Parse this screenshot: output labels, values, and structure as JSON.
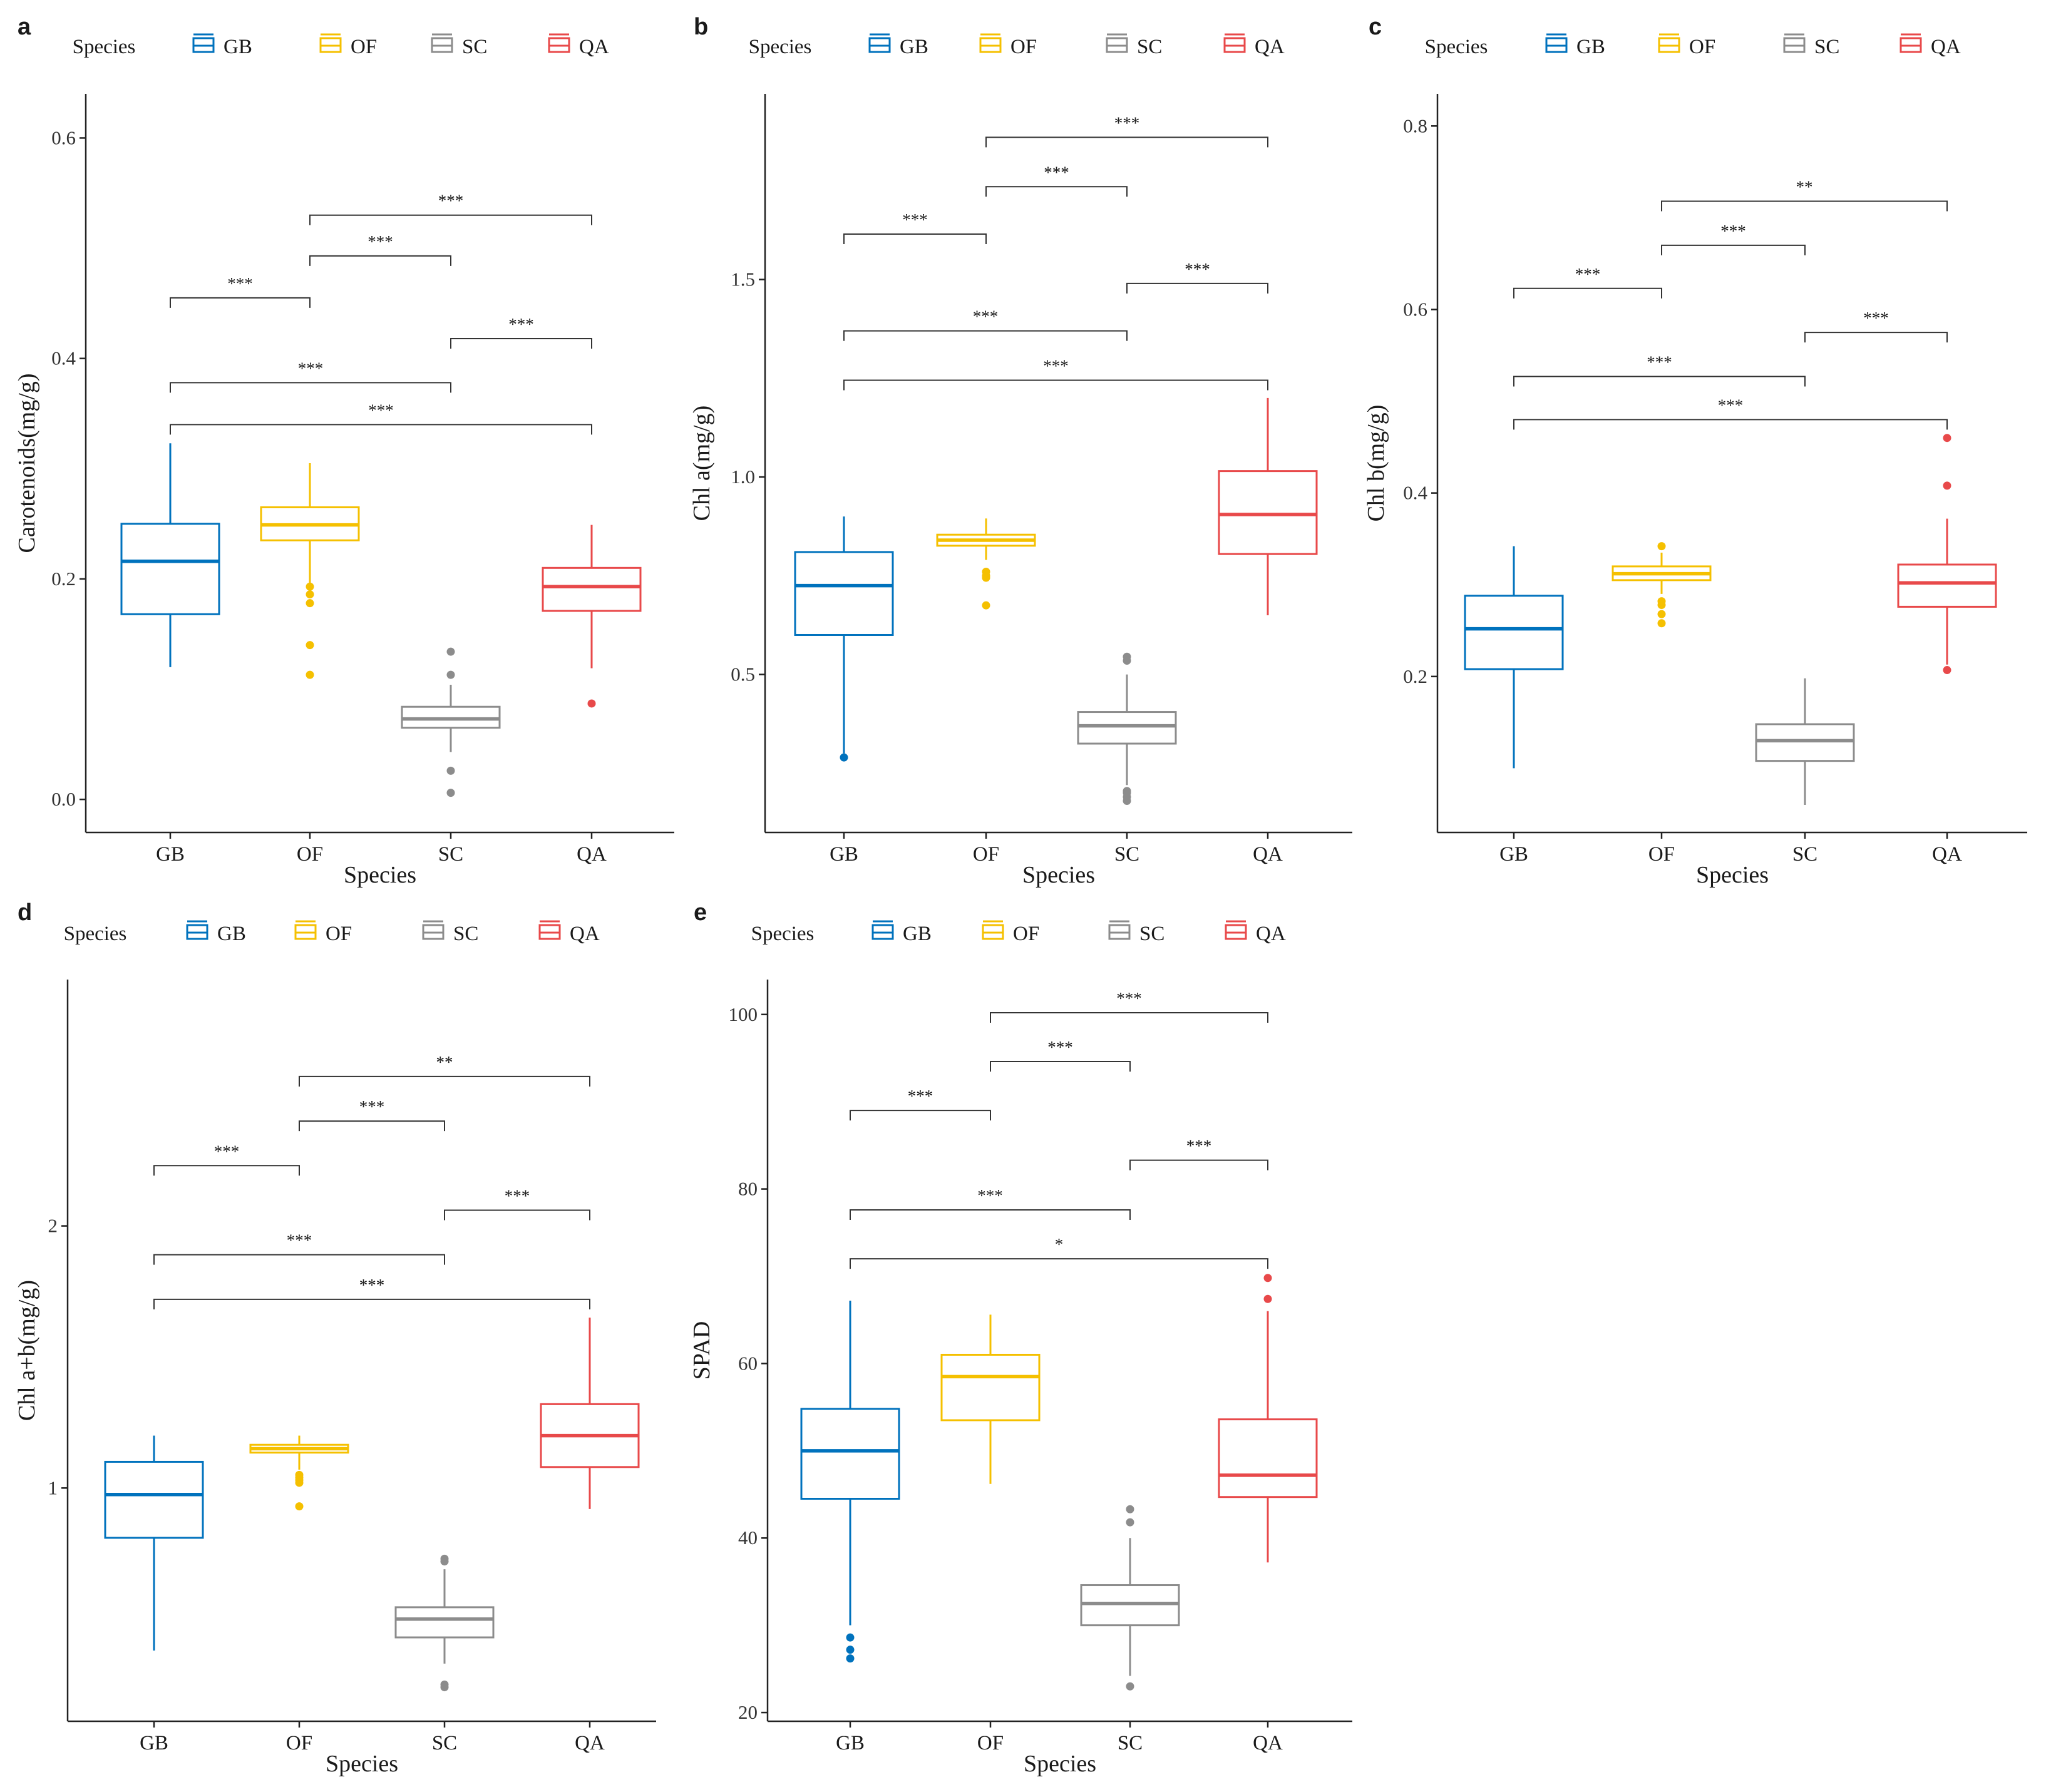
{
  "colors": {
    "GB": "#0072bd",
    "OF": "#f5c000",
    "SC": "#8c8c8c",
    "QA": "#e8494a"
  },
  "chart_data": [
    {
      "panel": "a",
      "type": "box",
      "legend": {
        "title": "Species",
        "entries": [
          "GB",
          "OF",
          "SC",
          "QA"
        ],
        "placement": "top"
      },
      "xlabel": "Species",
      "ylabel": "Carotenoids(mg/g)",
      "categories": [
        "GB",
        "OF",
        "SC",
        "QA"
      ],
      "ylim": [
        -0.03,
        0.64
      ],
      "yticks": [
        0.0,
        0.2,
        0.4,
        0.6
      ],
      "ytick_labels": [
        "0.0",
        "0.2",
        "0.4",
        "0.6"
      ],
      "boxes": [
        {
          "name": "GB",
          "whisker_low": 0.12,
          "q1": 0.168,
          "median": 0.216,
          "q3": 0.25,
          "whisker_high": 0.323,
          "outliers": []
        },
        {
          "name": "OF",
          "whisker_low": 0.196,
          "q1": 0.235,
          "median": 0.249,
          "q3": 0.265,
          "whisker_high": 0.305,
          "outliers": [
            0.193,
            0.186,
            0.178,
            0.14,
            0.113
          ]
        },
        {
          "name": "SC",
          "whisker_low": 0.043,
          "q1": 0.065,
          "median": 0.073,
          "q3": 0.084,
          "whisker_high": 0.104,
          "outliers": [
            0.134,
            0.113,
            0.026,
            0.006
          ]
        },
        {
          "name": "QA",
          "whisker_low": 0.119,
          "q1": 0.171,
          "median": 0.193,
          "q3": 0.21,
          "whisker_high": 0.249,
          "outliers": [
            0.087
          ]
        }
      ],
      "significance": [
        {
          "from": "GB",
          "to": "QA",
          "y": 0.34,
          "label": "***"
        },
        {
          "from": "GB",
          "to": "SC",
          "y": 0.378,
          "label": "***"
        },
        {
          "from": "SC",
          "to": "QA",
          "y": 0.418,
          "label": "***"
        },
        {
          "from": "GB",
          "to": "OF",
          "y": 0.455,
          "label": "***"
        },
        {
          "from": "OF",
          "to": "SC",
          "y": 0.493,
          "label": "***"
        },
        {
          "from": "OF",
          "to": "QA",
          "y": 0.53,
          "label": "***"
        }
      ]
    },
    {
      "panel": "b",
      "type": "box",
      "legend": {
        "title": "Species",
        "entries": [
          "GB",
          "OF",
          "SC",
          "QA"
        ],
        "placement": "top"
      },
      "xlabel": "Species",
      "ylabel": "Chl a(mg/g)",
      "categories": [
        "GB",
        "OF",
        "SC",
        "QA"
      ],
      "ylim": [
        0.1,
        1.97
      ],
      "yticks": [
        0.5,
        1.0,
        1.5
      ],
      "ytick_labels": [
        "0.5",
        "1.0",
        "1.5"
      ],
      "boxes": [
        {
          "name": "GB",
          "whisker_low": 0.3,
          "q1": 0.6,
          "median": 0.725,
          "q3": 0.81,
          "whisker_high": 0.9,
          "outliers": [
            0.29
          ]
        },
        {
          "name": "OF",
          "whisker_low": 0.79,
          "q1": 0.826,
          "median": 0.84,
          "q3": 0.854,
          "whisker_high": 0.895,
          "outliers": [
            0.76,
            0.75,
            0.745,
            0.675
          ]
        },
        {
          "name": "SC",
          "whisker_low": 0.22,
          "q1": 0.325,
          "median": 0.37,
          "q3": 0.405,
          "whisker_high": 0.5,
          "outliers": [
            0.545,
            0.535,
            0.205,
            0.2,
            0.19,
            0.18
          ]
        },
        {
          "name": "QA",
          "whisker_low": 0.65,
          "q1": 0.805,
          "median": 0.905,
          "q3": 1.015,
          "whisker_high": 1.2,
          "outliers": []
        }
      ],
      "significance": [
        {
          "from": "GB",
          "to": "QA",
          "y": 1.245,
          "label": "***"
        },
        {
          "from": "GB",
          "to": "SC",
          "y": 1.37,
          "label": "***"
        },
        {
          "from": "SC",
          "to": "QA",
          "y": 1.49,
          "label": "***"
        },
        {
          "from": "GB",
          "to": "OF",
          "y": 1.615,
          "label": "***"
        },
        {
          "from": "OF",
          "to": "SC",
          "y": 1.735,
          "label": "***"
        },
        {
          "from": "OF",
          "to": "QA",
          "y": 1.86,
          "label": "***"
        }
      ]
    },
    {
      "panel": "c",
      "type": "box",
      "legend": {
        "title": "Species",
        "entries": [
          "GB",
          "OF",
          "SC",
          "QA"
        ],
        "placement": "top"
      },
      "xlabel": "Species",
      "ylabel": "Chl b(mg/g)",
      "categories": [
        "GB",
        "OF",
        "SC",
        "QA"
      ],
      "ylim": [
        0.03,
        0.835
      ],
      "yticks": [
        0.2,
        0.4,
        0.6,
        0.8
      ],
      "ytick_labels": [
        "0.2",
        "0.4",
        "0.6",
        "0.8"
      ],
      "boxes": [
        {
          "name": "GB",
          "whisker_low": 0.1,
          "q1": 0.208,
          "median": 0.252,
          "q3": 0.288,
          "whisker_high": 0.342,
          "outliers": []
        },
        {
          "name": "OF",
          "whisker_low": 0.29,
          "q1": 0.305,
          "median": 0.312,
          "q3": 0.32,
          "whisker_high": 0.335,
          "outliers": [
            0.342,
            0.282,
            0.278,
            0.268,
            0.258
          ]
        },
        {
          "name": "SC",
          "whisker_low": 0.06,
          "q1": 0.108,
          "median": 0.13,
          "q3": 0.148,
          "whisker_high": 0.198,
          "outliers": []
        },
        {
          "name": "QA",
          "whisker_low": 0.213,
          "q1": 0.276,
          "median": 0.302,
          "q3": 0.322,
          "whisker_high": 0.372,
          "outliers": [
            0.46,
            0.408,
            0.207
          ]
        }
      ],
      "significance": [
        {
          "from": "GB",
          "to": "QA",
          "y": 0.48,
          "label": "***"
        },
        {
          "from": "GB",
          "to": "SC",
          "y": 0.527,
          "label": "***"
        },
        {
          "from": "SC",
          "to": "QA",
          "y": 0.575,
          "label": "***"
        },
        {
          "from": "GB",
          "to": "OF",
          "y": 0.623,
          "label": "***"
        },
        {
          "from": "OF",
          "to": "SC",
          "y": 0.67,
          "label": "***"
        },
        {
          "from": "OF",
          "to": "QA",
          "y": 0.718,
          "label": "**"
        }
      ]
    },
    {
      "panel": "d",
      "type": "box",
      "legend": {
        "title": "Species",
        "entries": [
          "GB",
          "OF",
          "SC",
          "QA"
        ],
        "placement": "top"
      },
      "xlabel": "Species",
      "ylabel": "Chl a+b(mg/g)",
      "categories": [
        "GB",
        "OF",
        "SC",
        "QA"
      ],
      "ylim": [
        0.11,
        2.94
      ],
      "yticks": [
        1,
        2
      ],
      "ytick_labels": [
        "1",
        "2"
      ],
      "boxes": [
        {
          "name": "GB",
          "whisker_low": 0.38,
          "q1": 0.81,
          "median": 0.975,
          "q3": 1.1,
          "whisker_high": 1.2,
          "outliers": []
        },
        {
          "name": "OF",
          "whisker_low": 1.07,
          "q1": 1.135,
          "median": 1.15,
          "q3": 1.165,
          "whisker_high": 1.2,
          "outliers": [
            1.05,
            1.04,
            1.03,
            1.02,
            0.93
          ]
        },
        {
          "name": "SC",
          "whisker_low": 0.33,
          "q1": 0.43,
          "median": 0.5,
          "q3": 0.545,
          "whisker_high": 0.69,
          "outliers": [
            0.73,
            0.72,
            0.25,
            0.24
          ]
        },
        {
          "name": "QA",
          "whisker_low": 0.92,
          "q1": 1.08,
          "median": 1.2,
          "q3": 1.32,
          "whisker_high": 1.65,
          "outliers": []
        }
      ],
      "significance": [
        {
          "from": "GB",
          "to": "QA",
          "y": 1.72,
          "label": "***"
        },
        {
          "from": "GB",
          "to": "SC",
          "y": 1.89,
          "label": "***"
        },
        {
          "from": "SC",
          "to": "QA",
          "y": 2.06,
          "label": "***"
        },
        {
          "from": "GB",
          "to": "OF",
          "y": 2.23,
          "label": "***"
        },
        {
          "from": "OF",
          "to": "SC",
          "y": 2.4,
          "label": "***"
        },
        {
          "from": "OF",
          "to": "QA",
          "y": 2.57,
          "label": "**"
        }
      ]
    },
    {
      "panel": "e",
      "type": "box",
      "legend": {
        "title": "Species",
        "entries": [
          "GB",
          "OF",
          "SC",
          "QA"
        ],
        "placement": "top"
      },
      "xlabel": "Species",
      "ylabel": "SPAD",
      "categories": [
        "GB",
        "OF",
        "SC",
        "QA"
      ],
      "ylim": [
        19,
        104
      ],
      "yticks": [
        20,
        40,
        60,
        80,
        100
      ],
      "ytick_labels": [
        "20",
        "40",
        "60",
        "80",
        "100"
      ],
      "boxes": [
        {
          "name": "GB",
          "whisker_low": 30,
          "q1": 44.5,
          "median": 50,
          "q3": 54.8,
          "whisker_high": 67.2,
          "outliers": [
            28.6,
            27.2,
            26.2
          ]
        },
        {
          "name": "OF",
          "whisker_low": 46.2,
          "q1": 53.5,
          "median": 58.5,
          "q3": 61,
          "whisker_high": 65.6,
          "outliers": []
        },
        {
          "name": "SC",
          "whisker_low": 24.2,
          "q1": 30,
          "median": 32.5,
          "q3": 34.6,
          "whisker_high": 40,
          "outliers": [
            43.3,
            41.8,
            23
          ]
        },
        {
          "name": "QA",
          "whisker_low": 37.2,
          "q1": 44.7,
          "median": 47.2,
          "q3": 53.6,
          "whisker_high": 66,
          "outliers": [
            69.8,
            67.4
          ]
        }
      ],
      "significance": [
        {
          "from": "GB",
          "to": "QA",
          "y": 72,
          "label": "*"
        },
        {
          "from": "GB",
          "to": "SC",
          "y": 77.6,
          "label": "***"
        },
        {
          "from": "SC",
          "to": "QA",
          "y": 83.3,
          "label": "***"
        },
        {
          "from": "GB",
          "to": "OF",
          "y": 89,
          "label": "***"
        },
        {
          "from": "OF",
          "to": "SC",
          "y": 94.6,
          "label": "***"
        },
        {
          "from": "OF",
          "to": "QA",
          "y": 100.2,
          "label": "***"
        }
      ]
    }
  ]
}
